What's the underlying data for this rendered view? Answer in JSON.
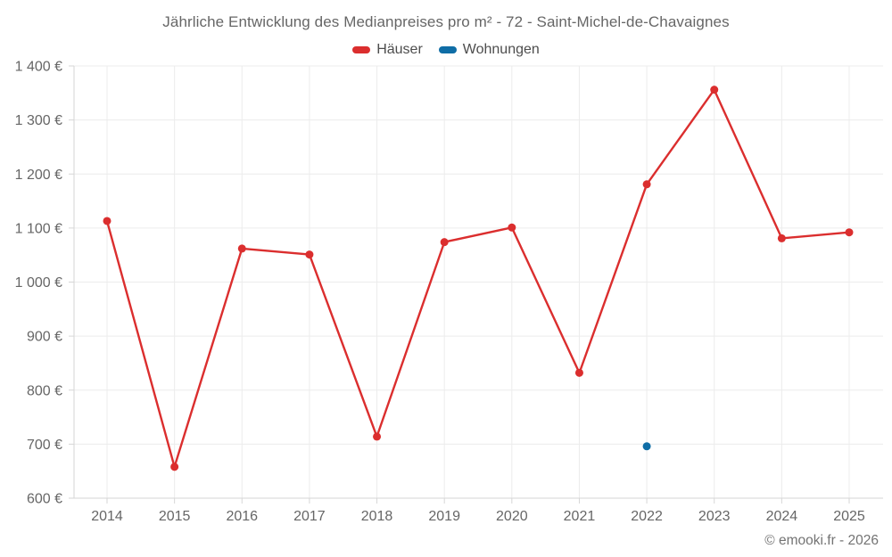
{
  "title": "Jährliche Entwicklung des Medianpreises pro m² - 72 - Saint-Michel-de-Chavaignes",
  "footer": "© emooki.fr - 2026",
  "chart_data": {
    "type": "line",
    "title": "Jährliche Entwicklung des Medianpreises pro m² - 72 - Saint-Michel-de-Chavaignes",
    "categories": [
      "2014",
      "2015",
      "2016",
      "2017",
      "2018",
      "2019",
      "2020",
      "2021",
      "2022",
      "2023",
      "2024",
      "2025"
    ],
    "series": [
      {
        "name": "Häuser",
        "color": "#db2e2e",
        "values": [
          1113,
          658,
          1062,
          1051,
          714,
          1074,
          1101,
          832,
          1181,
          1356,
          1081,
          1092
        ]
      },
      {
        "name": "Wohnungen",
        "color": "#0f6da6",
        "values": [
          null,
          null,
          null,
          null,
          null,
          null,
          null,
          null,
          696,
          null,
          null,
          null
        ]
      }
    ],
    "ylim": [
      600,
      1400
    ],
    "yticks": [
      600,
      700,
      800,
      900,
      1000,
      1100,
      1200,
      1300,
      1400
    ],
    "ytick_labels": [
      "600 €",
      "700 €",
      "800 €",
      "900 €",
      "1 000 €",
      "1 100 €",
      "1 200 €",
      "1 300 €",
      "1 400 €"
    ],
    "xlabel": "",
    "ylabel": "",
    "grid": true,
    "legend_position": "top",
    "marker": "circle"
  }
}
